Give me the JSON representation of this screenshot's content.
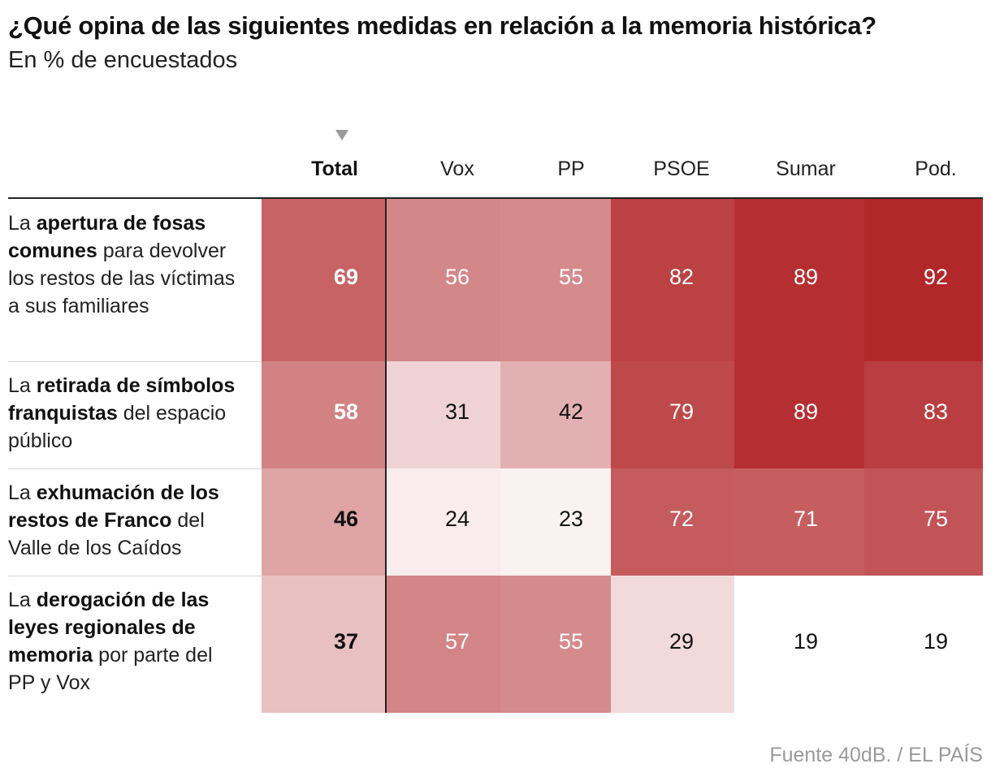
{
  "title": "¿Qué opina de las siguientes medidas en relación a la memoria histórica?",
  "subtitle": "En % de encuestados",
  "source": "Fuente 40dB. / EL PAÍS",
  "chart_data": {
    "type": "table",
    "columns": [
      "Total",
      "Vox",
      "PP",
      "PSOE",
      "Sumar",
      "Pod."
    ],
    "sorted_by": "Total",
    "rows": [
      {
        "label_parts": [
          {
            "text": "La ",
            "bold": false
          },
          {
            "text": "apertura de fosas comunes",
            "bold": true
          },
          {
            "text": " para devolver los restos de las víctimas a sus familiares",
            "bold": false
          }
        ],
        "values": [
          69,
          56,
          55,
          82,
          89,
          92
        ]
      },
      {
        "label_parts": [
          {
            "text": "La ",
            "bold": false
          },
          {
            "text": "retirada de símbolos franquistas",
            "bold": true
          },
          {
            "text": " del espacio público",
            "bold": false
          }
        ],
        "values": [
          58,
          31,
          42,
          79,
          89,
          83
        ]
      },
      {
        "label_parts": [
          {
            "text": "La ",
            "bold": false
          },
          {
            "text": "exhumación de los restos de Franco",
            "bold": true
          },
          {
            "text": " del Valle de los Caídos",
            "bold": false
          }
        ],
        "values": [
          46,
          24,
          23,
          72,
          71,
          75
        ]
      },
      {
        "label_parts": [
          {
            "text": "La ",
            "bold": false
          },
          {
            "text": "derogación de las leyes regionales de memoria",
            "bold": true
          },
          {
            "text": " por parte del PP y Vox",
            "bold": false
          }
        ],
        "values": [
          37,
          57,
          55,
          29,
          19,
          19
        ]
      }
    ],
    "color_scale": {
      "low": "#ffffff",
      "high": "#b2272a"
    }
  }
}
